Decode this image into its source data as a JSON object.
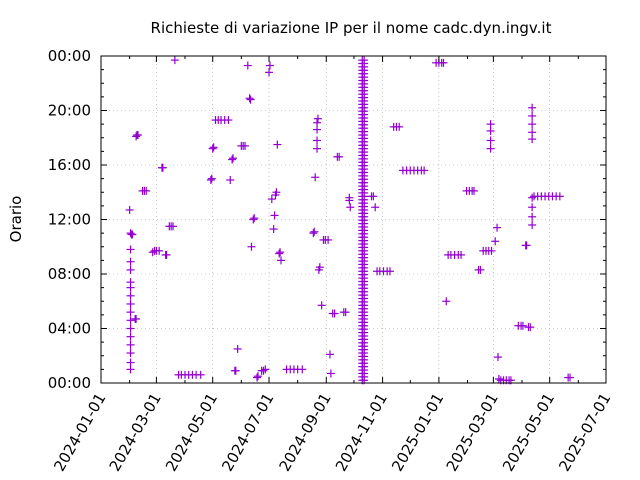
{
  "chart_data": {
    "type": "scatter",
    "title": "Richieste di variazione IP per il nome cadc.dyn.ingv.it",
    "xlabel": "",
    "ylabel": "Orario",
    "x_axis": {
      "type": "date",
      "min": "2024-01-01",
      "max": "2025-07-01",
      "ticks": [
        "2024-01-01",
        "2024-03-01",
        "2024-05-01",
        "2024-07-01",
        "2024-09-01",
        "2024-11-01",
        "2025-01-01",
        "2025-03-01",
        "2025-05-01",
        "2025-07-01"
      ]
    },
    "y_axis": {
      "min": 0,
      "max": 24,
      "unit": "hours",
      "ticks": [
        {
          "value": 0,
          "label": "00:00"
        },
        {
          "value": 4,
          "label": "04:00"
        },
        {
          "value": 8,
          "label": "08:00"
        },
        {
          "value": 12,
          "label": "12:00"
        },
        {
          "value": 16,
          "label": "16:00"
        },
        {
          "value": 20,
          "label": "20:00"
        },
        {
          "value": 24,
          "label": "00:00"
        }
      ]
    },
    "grid": true,
    "marker": "plus",
    "color": "#9400d3",
    "points": [
      [
        "2024-02-01",
        12.7
      ],
      [
        "2024-02-02",
        2.2
      ],
      [
        "2024-02-02",
        1.5
      ],
      [
        "2024-02-02",
        1.0
      ],
      [
        "2024-02-02",
        2.8
      ],
      [
        "2024-02-02",
        3.4
      ],
      [
        "2024-02-02",
        4.0
      ],
      [
        "2024-02-02",
        4.6
      ],
      [
        "2024-02-02",
        5.2
      ],
      [
        "2024-02-02",
        5.8
      ],
      [
        "2024-02-02",
        6.4
      ],
      [
        "2024-02-02",
        7.0
      ],
      [
        "2024-02-02",
        7.4
      ],
      [
        "2024-02-02",
        8.3
      ],
      [
        "2024-02-02",
        8.9
      ],
      [
        "2024-02-02",
        9.8
      ],
      [
        "2024-02-02",
        11.0
      ],
      [
        "2024-02-03",
        10.9
      ],
      [
        "2024-02-04",
        10.9
      ],
      [
        "2024-02-07",
        4.7
      ],
      [
        "2024-02-08",
        4.7
      ],
      [
        "2024-02-08",
        18.1
      ],
      [
        "2024-02-09",
        18.2
      ],
      [
        "2024-02-10",
        18.2
      ],
      [
        "2024-02-15",
        14.1
      ],
      [
        "2024-02-17",
        14.1
      ],
      [
        "2024-02-19",
        14.1
      ],
      [
        "2024-02-26",
        9.6
      ],
      [
        "2024-02-28",
        9.7
      ],
      [
        "2024-03-01",
        9.7
      ],
      [
        "2024-03-04",
        9.7
      ],
      [
        "2024-03-07",
        15.8
      ],
      [
        "2024-03-08",
        15.8
      ],
      [
        "2024-03-11",
        9.4
      ],
      [
        "2024-03-12",
        9.4
      ],
      [
        "2024-03-15",
        11.5
      ],
      [
        "2024-03-17",
        11.5
      ],
      [
        "2024-03-19",
        11.5
      ],
      [
        "2024-03-21",
        23.7
      ],
      [
        "2024-03-25",
        0.6
      ],
      [
        "2024-03-28",
        0.6
      ],
      [
        "2024-04-01",
        0.6
      ],
      [
        "2024-04-05",
        0.6
      ],
      [
        "2024-04-09",
        0.6
      ],
      [
        "2024-04-13",
        0.6
      ],
      [
        "2024-04-18",
        0.6
      ],
      [
        "2024-04-29",
        14.9
      ],
      [
        "2024-04-30",
        15.0
      ],
      [
        "2024-05-01",
        17.2
      ],
      [
        "2024-05-02",
        17.3
      ],
      [
        "2024-05-04",
        19.3
      ],
      [
        "2024-05-07",
        19.3
      ],
      [
        "2024-05-10",
        19.3
      ],
      [
        "2024-05-14",
        19.3
      ],
      [
        "2024-05-18",
        19.3
      ],
      [
        "2024-05-20",
        14.9
      ],
      [
        "2024-05-22",
        16.4
      ],
      [
        "2024-05-23",
        16.5
      ],
      [
        "2024-05-25",
        0.9
      ],
      [
        "2024-05-26",
        0.9
      ],
      [
        "2024-05-28",
        2.5
      ],
      [
        "2024-06-01",
        17.4
      ],
      [
        "2024-06-03",
        17.4
      ],
      [
        "2024-06-05",
        17.4
      ],
      [
        "2024-06-08",
        23.3
      ],
      [
        "2024-06-10",
        20.9
      ],
      [
        "2024-06-11",
        20.8
      ],
      [
        "2024-06-12",
        10.0
      ],
      [
        "2024-06-14",
        12.0
      ],
      [
        "2024-06-15",
        12.1
      ],
      [
        "2024-06-18",
        0.4
      ],
      [
        "2024-06-19",
        0.5
      ],
      [
        "2024-06-23",
        0.9
      ],
      [
        "2024-06-25",
        0.9
      ],
      [
        "2024-06-27",
        1.0
      ],
      [
        "2024-07-01",
        22.8
      ],
      [
        "2024-07-02",
        23.3
      ],
      [
        "2024-07-04",
        13.5
      ],
      [
        "2024-07-06",
        11.3
      ],
      [
        "2024-07-07",
        12.3
      ],
      [
        "2024-07-08",
        13.8
      ],
      [
        "2024-07-09",
        14.0
      ],
      [
        "2024-07-10",
        17.5
      ],
      [
        "2024-07-12",
        9.5
      ],
      [
        "2024-07-14",
        9.0
      ],
      [
        "2024-07-13",
        9.6
      ],
      [
        "2024-07-20",
        1.0
      ],
      [
        "2024-07-24",
        1.0
      ],
      [
        "2024-07-28",
        1.0
      ],
      [
        "2024-08-01",
        1.0
      ],
      [
        "2024-08-06",
        1.0
      ],
      [
        "2024-08-18",
        11.0
      ],
      [
        "2024-08-19",
        11.1
      ],
      [
        "2024-08-20",
        15.1
      ],
      [
        "2024-08-22",
        19.1
      ],
      [
        "2024-08-22",
        18.6
      ],
      [
        "2024-08-22",
        17.8
      ],
      [
        "2024-08-22",
        17.2
      ],
      [
        "2024-08-23",
        19.4
      ],
      [
        "2024-08-24",
        8.3
      ],
      [
        "2024-08-25",
        8.5
      ],
      [
        "2024-08-27",
        5.7
      ],
      [
        "2024-08-29",
        10.5
      ],
      [
        "2024-08-31",
        10.5
      ],
      [
        "2024-09-03",
        10.5
      ],
      [
        "2024-09-05",
        2.1
      ],
      [
        "2024-09-06",
        0.7
      ],
      [
        "2024-09-08",
        5.1
      ],
      [
        "2024-09-10",
        5.1
      ],
      [
        "2024-09-13",
        16.6
      ],
      [
        "2024-09-15",
        16.6
      ],
      [
        "2024-09-20",
        5.2
      ],
      [
        "2024-09-22",
        5.2
      ],
      [
        "2024-09-26",
        13.6
      ],
      [
        "2024-09-26",
        13.4
      ],
      [
        "2024-09-27",
        12.9
      ],
      [
        "2024-10-20",
        13.7
      ],
      [
        "2024-10-22",
        13.7
      ],
      [
        "2024-10-24",
        12.9
      ],
      [
        "2024-10-26",
        8.2
      ],
      [
        "2024-10-29",
        8.2
      ],
      [
        "2024-11-02",
        8.2
      ],
      [
        "2024-11-06",
        8.2
      ],
      [
        "2024-11-09",
        8.2
      ],
      [
        "2024-11-13",
        18.8
      ],
      [
        "2024-11-16",
        18.8
      ],
      [
        "2024-11-19",
        18.8
      ],
      [
        "2024-11-23",
        15.6
      ],
      [
        "2024-11-27",
        15.6
      ],
      [
        "2024-12-01",
        15.6
      ],
      [
        "2024-12-05",
        15.6
      ],
      [
        "2024-12-09",
        15.6
      ],
      [
        "2024-12-13",
        15.6
      ],
      [
        "2024-12-16",
        15.6
      ],
      [
        "2024-12-29",
        23.5
      ],
      [
        "2025-01-01",
        23.5
      ],
      [
        "2025-01-04",
        23.5
      ],
      [
        "2025-01-06",
        23.5
      ],
      [
        "2025-01-09",
        6.0
      ],
      [
        "2025-01-11",
        9.4
      ],
      [
        "2025-01-14",
        9.4
      ],
      [
        "2025-01-18",
        9.4
      ],
      [
        "2025-01-22",
        9.4
      ],
      [
        "2025-01-25",
        9.4
      ],
      [
        "2025-01-31",
        14.1
      ],
      [
        "2025-02-03",
        14.1
      ],
      [
        "2025-02-06",
        14.1
      ],
      [
        "2025-02-08",
        14.1
      ],
      [
        "2025-02-13",
        8.3
      ],
      [
        "2025-02-15",
        8.3
      ],
      [
        "2025-02-18",
        9.7
      ],
      [
        "2025-02-21",
        9.7
      ],
      [
        "2025-02-24",
        9.7
      ],
      [
        "2025-02-27",
        9.7
      ],
      [
        "2025-02-26",
        17.2
      ],
      [
        "2025-02-26",
        17.8
      ],
      [
        "2025-02-26",
        18.5
      ],
      [
        "2025-02-26",
        19.0
      ],
      [
        "2025-03-03",
        10.4
      ],
      [
        "2025-03-05",
        11.4
      ],
      [
        "2025-03-07",
        0.3
      ],
      [
        "2025-03-09",
        0.2
      ],
      [
        "2025-03-12",
        0.2
      ],
      [
        "2025-03-15",
        0.2
      ],
      [
        "2025-03-18",
        0.2
      ],
      [
        "2025-03-20",
        0.2
      ],
      [
        "2025-03-06",
        1.9
      ],
      [
        "2025-03-28",
        4.2
      ],
      [
        "2025-03-31",
        4.2
      ],
      [
        "2025-04-02",
        4.2
      ],
      [
        "2025-04-05",
        10.1
      ],
      [
        "2025-04-06",
        10.1
      ],
      [
        "2025-04-08",
        4.1
      ],
      [
        "2025-04-10",
        4.1
      ],
      [
        "2025-04-12",
        20.2
      ],
      [
        "2025-04-12",
        19.6
      ],
      [
        "2025-04-12",
        19.0
      ],
      [
        "2025-04-12",
        18.4
      ],
      [
        "2025-04-12",
        17.9
      ],
      [
        "2025-04-12",
        13.6
      ],
      [
        "2025-04-12",
        12.9
      ],
      [
        "2025-04-12",
        12.2
      ],
      [
        "2025-04-12",
        11.6
      ],
      [
        "2025-04-14",
        13.7
      ],
      [
        "2025-04-18",
        13.7
      ],
      [
        "2025-04-22",
        13.7
      ],
      [
        "2025-04-26",
        13.7
      ],
      [
        "2025-04-30",
        13.7
      ],
      [
        "2025-05-04",
        13.7
      ],
      [
        "2025-05-08",
        13.7
      ],
      [
        "2025-05-12",
        13.7
      ],
      [
        "2025-05-21",
        0.4
      ],
      [
        "2025-05-23",
        0.4
      ]
    ],
    "dense_columns": [
      {
        "x": [
          "2024-10-10",
          "2024-10-12"
        ],
        "y_range": [
          0.2,
          23.8
        ],
        "step": 0.25
      }
    ]
  }
}
